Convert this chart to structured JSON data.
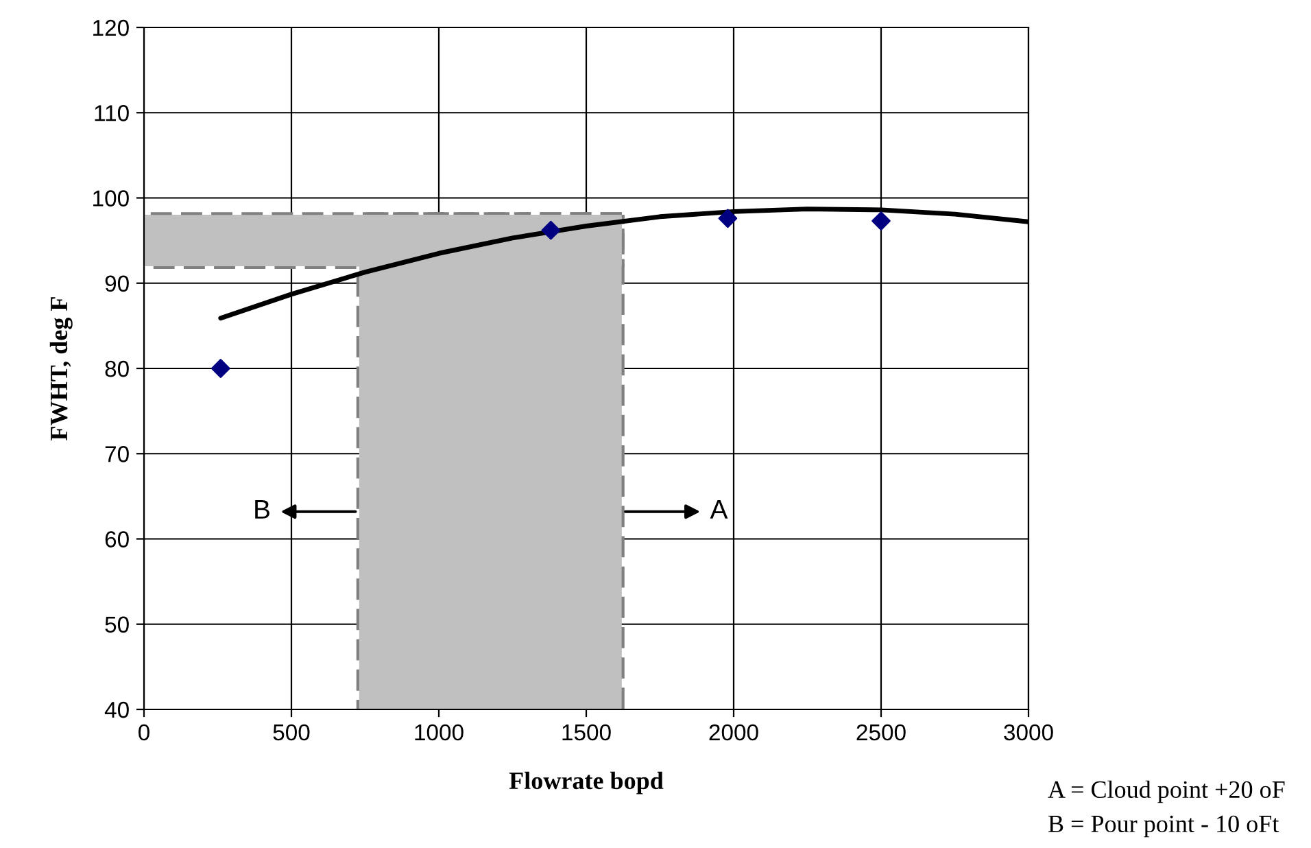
{
  "chart_data": {
    "type": "scatter",
    "xlabel": "Flowrate bopd",
    "ylabel": "FWHT, deg F",
    "xlim": [
      0,
      3000
    ],
    "xticks": [
      0,
      500,
      1000,
      1500,
      2000,
      2500,
      3000
    ],
    "ylim": [
      40,
      120
    ],
    "yticks": [
      40,
      50,
      60,
      70,
      80,
      90,
      100,
      110,
      120
    ],
    "grid": true,
    "marker": "diamond",
    "series": [
      {
        "color": "#000080",
        "x": [
          260,
          1380,
          1980,
          2500
        ],
        "values": [
          80,
          96.2,
          97.6,
          97.3
        ]
      },
      {
        "type": "line",
        "color": "#000000",
        "marker": "none",
        "x": [
          260,
          500,
          750,
          1000,
          1250,
          1500,
          1750,
          2000,
          2250,
          2500,
          2750,
          3000
        ],
        "values": [
          85.9,
          88.7,
          91.3,
          93.5,
          95.3,
          96.7,
          97.8,
          98.4,
          98.7,
          98.6,
          98.1,
          97.2
        ]
      }
    ],
    "bands": [
      {
        "axis": "y",
        "from": 92,
        "to": 98,
        "color": "#c0c0c0"
      },
      {
        "axis": "x",
        "from": 730,
        "to": 1620,
        "color": "#c0c0c0"
      }
    ],
    "annotations": [
      "B",
      "A",
      "A = Cloud point +20 oF",
      "B = Pour point - 10 oFt"
    ]
  }
}
